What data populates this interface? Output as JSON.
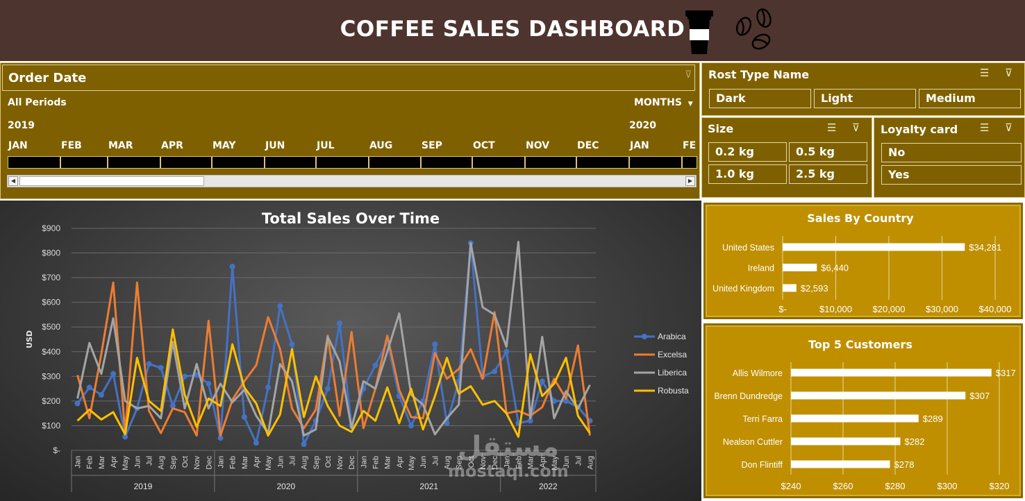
{
  "header": {
    "title": "COFFEE SALES DASHBOARD",
    "cup_icon": "coffee-cup-icon",
    "beans_icon": "coffee-beans-icon"
  },
  "timeline": {
    "title": "Order Date",
    "range_label": "All Periods",
    "level": "MONTHS",
    "year_start": "2019",
    "year_next": "2020",
    "months": [
      "JAN",
      "FEB",
      "MAR",
      "APR",
      "MAY",
      "JUN",
      "JUL",
      "AUG",
      "SEP",
      "OCT",
      "NOV",
      "DEC",
      "JAN",
      "FE"
    ]
  },
  "slicers": {
    "roast": {
      "title": "Rost Type Name",
      "items": [
        "Dark",
        "Light",
        "Medium"
      ]
    },
    "size": {
      "title": "Size",
      "items": [
        "0.2 kg",
        "0.5 kg",
        "1.0 kg",
        "2.5 kg"
      ]
    },
    "loyalty": {
      "title": "Loyalty card",
      "items": [
        "No",
        "Yes"
      ]
    }
  },
  "watermark": {
    "arabic": "مستقل",
    "latin": "mostaql.com"
  },
  "chart_data": [
    {
      "type": "line",
      "title": "Total Sales Over Time",
      "ylabel": "USD",
      "ylim": [
        0,
        900
      ],
      "yticks": [
        "$-",
        "$100",
        "$200",
        "$300",
        "$400",
        "$500",
        "$600",
        "$700",
        "$800",
        "$900"
      ],
      "x": [
        "Jan",
        "Feb",
        "Mar",
        "Apr",
        "May",
        "Jun",
        "Jul",
        "Aug",
        "Sep",
        "Oct",
        "Nov",
        "Dec",
        "Jan",
        "Feb",
        "Mar",
        "Apr",
        "May",
        "Jun",
        "Jul",
        "Aug",
        "Sep",
        "Oct",
        "Nov",
        "Dec",
        "Jan",
        "Feb",
        "Mar",
        "Apr",
        "May",
        "Jun",
        "Jul",
        "Aug",
        "Sep",
        "Oct",
        "Nov",
        "Dec",
        "Jan",
        "Feb",
        "Mar",
        "Apr",
        "May",
        "Jun",
        "Jul",
        "Aug"
      ],
      "years": [
        "2019",
        "2020",
        "2021",
        "2022"
      ],
      "legend": "right",
      "series": [
        {
          "name": "Arabica",
          "color": "#4472c4",
          "values": [
            190,
            255,
            225,
            310,
            55,
            170,
            350,
            335,
            180,
            300,
            305,
            270,
            50,
            745,
            135,
            30,
            255,
            585,
            430,
            25,
            120,
            250,
            515,
            100,
            250,
            345,
            440,
            220,
            100,
            200,
            430,
            110,
            280,
            840,
            300,
            320,
            400,
            110,
            120,
            280,
            200,
            200,
            175,
            120
          ]
        },
        {
          "name": "Excelsa",
          "color": "#ed7d31",
          "values": [
            305,
            130,
            390,
            680,
            70,
            680,
            160,
            70,
            170,
            155,
            60,
            525,
            60,
            205,
            280,
            345,
            540,
            410,
            170,
            90,
            165,
            465,
            140,
            480,
            90,
            250,
            465,
            245,
            135,
            130,
            395,
            290,
            330,
            410,
            290,
            560,
            150,
            160,
            140,
            175,
            290,
            210,
            425,
            60
          ]
        },
        {
          "name": "Liberica",
          "color": "#a5a5a5",
          "values": [
            210,
            435,
            310,
            535,
            200,
            170,
            180,
            130,
            440,
            170,
            350,
            170,
            270,
            195,
            245,
            140,
            70,
            350,
            280,
            60,
            85,
            460,
            360,
            90,
            280,
            250,
            400,
            555,
            225,
            185,
            65,
            130,
            185,
            840,
            580,
            550,
            420,
            845,
            130,
            460,
            130,
            240,
            170,
            265
          ]
        },
        {
          "name": "Robusta",
          "color": "#ffc000",
          "values": [
            120,
            165,
            125,
            155,
            65,
            375,
            200,
            160,
            490,
            225,
            95,
            210,
            180,
            430,
            255,
            190,
            60,
            145,
            410,
            135,
            300,
            180,
            100,
            75,
            160,
            120,
            255,
            110,
            250,
            85,
            220,
            375,
            230,
            260,
            185,
            200,
            150,
            55,
            390,
            220,
            270,
            375,
            140,
            70
          ]
        }
      ]
    },
    {
      "type": "bar",
      "title": "Sales By Country",
      "categories": [
        "United States",
        "Ireland",
        "United Kingdom"
      ],
      "values": [
        34281,
        6440,
        2593
      ],
      "value_labels": [
        "$34,281",
        "$6,440",
        "$2,593"
      ],
      "xlim": [
        0,
        40000
      ],
      "xticks": [
        "$-",
        "$10,000",
        "$20,000",
        "$30,000",
        "$40,000"
      ]
    },
    {
      "type": "bar",
      "title": "Top 5 Customers",
      "categories": [
        "Allis Wilmore",
        "Brenn Dundredge",
        "Terri Farra",
        "Nealson Cuttler",
        "Don Flintiff"
      ],
      "values": [
        317,
        307,
        289,
        282,
        278
      ],
      "value_labels": [
        "$317",
        "$307",
        "$289",
        "$282",
        "$278"
      ],
      "xlim": [
        240,
        320
      ],
      "xticks": [
        "$240",
        "$260",
        "$280",
        "$300",
        "$320"
      ]
    }
  ]
}
